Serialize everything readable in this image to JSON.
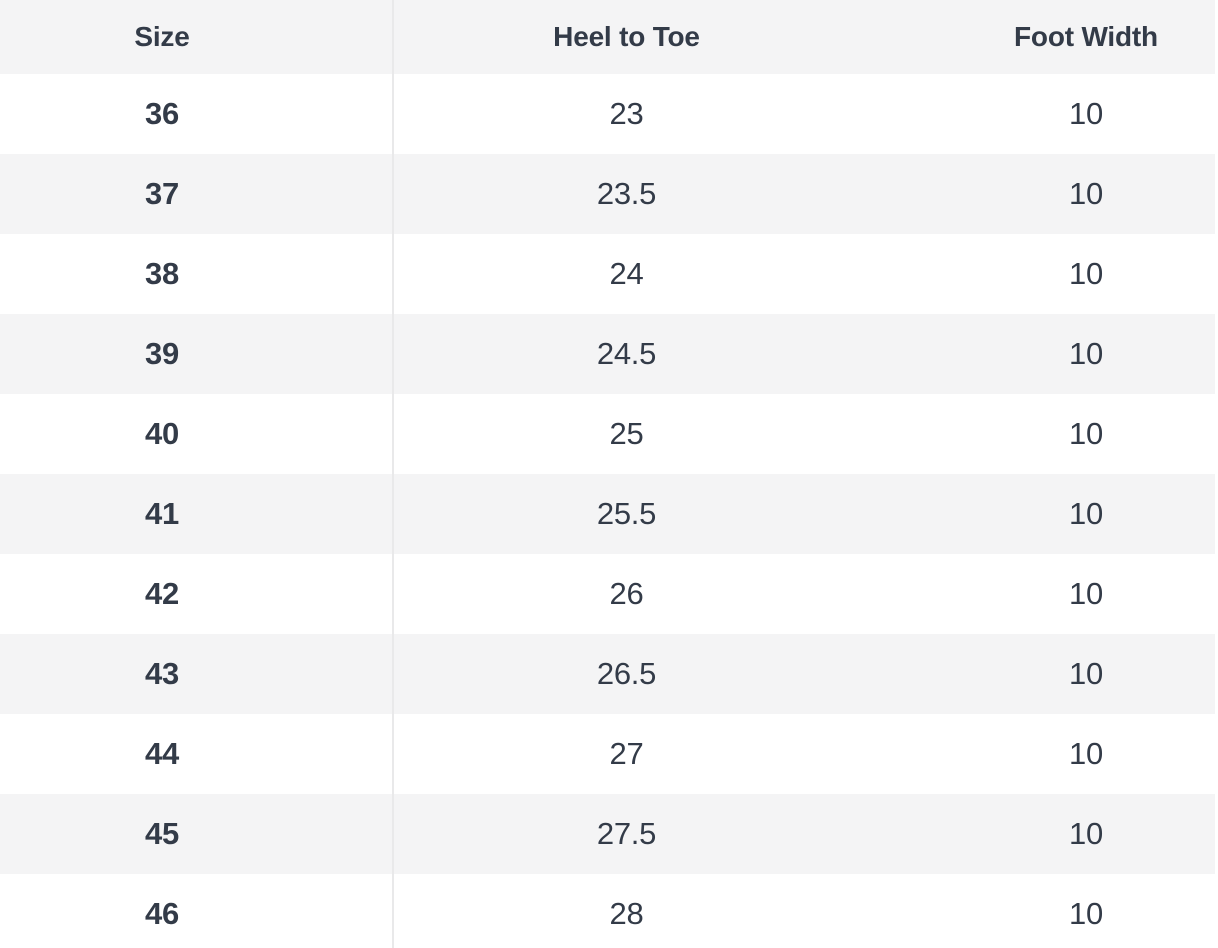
{
  "theme": {
    "text_color": "#333B48",
    "stripe_color": "#F4F4F5",
    "divider_color": "#E9E9EA",
    "row_bg": "#FFFFFF"
  },
  "table": {
    "columns": [
      {
        "id": "size",
        "label": "Size"
      },
      {
        "id": "heel_to_toe",
        "label": "Heel to Toe"
      },
      {
        "id": "foot_width",
        "label": "Foot Width"
      }
    ],
    "rows": [
      {
        "size": "36",
        "heel_to_toe": "23",
        "foot_width": "10"
      },
      {
        "size": "37",
        "heel_to_toe": "23.5",
        "foot_width": "10"
      },
      {
        "size": "38",
        "heel_to_toe": "24",
        "foot_width": "10"
      },
      {
        "size": "39",
        "heel_to_toe": "24.5",
        "foot_width": "10"
      },
      {
        "size": "40",
        "heel_to_toe": "25",
        "foot_width": "10"
      },
      {
        "size": "41",
        "heel_to_toe": "25.5",
        "foot_width": "10"
      },
      {
        "size": "42",
        "heel_to_toe": "26",
        "foot_width": "10"
      },
      {
        "size": "43",
        "heel_to_toe": "26.5",
        "foot_width": "10"
      },
      {
        "size": "44",
        "heel_to_toe": "27",
        "foot_width": "10"
      },
      {
        "size": "45",
        "heel_to_toe": "27.5",
        "foot_width": "10"
      },
      {
        "size": "46",
        "heel_to_toe": "28",
        "foot_width": "10"
      }
    ]
  }
}
